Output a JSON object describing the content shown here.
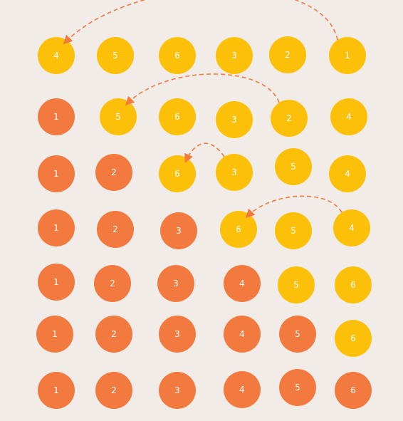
{
  "colors": {
    "background": "#f1ece8",
    "sorted": "#f27a3e",
    "unsorted": "#fdc009",
    "arrow": "#f27a3e",
    "label": "#ffffff"
  },
  "rows": [
    {
      "balls": [
        {
          "label": "4",
          "state": "unsorted"
        },
        {
          "label": "5",
          "state": "unsorted"
        },
        {
          "label": "6",
          "state": "unsorted"
        },
        {
          "label": "3",
          "state": "unsorted"
        },
        {
          "label": "2",
          "state": "unsorted"
        },
        {
          "label": "1",
          "state": "unsorted"
        }
      ],
      "arrow": {
        "from": 5,
        "to": 0
      }
    },
    {
      "balls": [
        {
          "label": "1",
          "state": "sorted"
        },
        {
          "label": "5",
          "state": "unsorted"
        },
        {
          "label": "6",
          "state": "unsorted"
        },
        {
          "label": "3",
          "state": "unsorted"
        },
        {
          "label": "2",
          "state": "unsorted"
        },
        {
          "label": "4",
          "state": "unsorted"
        }
      ],
      "arrow": {
        "from": 4,
        "to": 1
      }
    },
    {
      "balls": [
        {
          "label": "1",
          "state": "sorted"
        },
        {
          "label": "2",
          "state": "sorted"
        },
        {
          "label": "6",
          "state": "unsorted"
        },
        {
          "label": "3",
          "state": "unsorted"
        },
        {
          "label": "5",
          "state": "unsorted"
        },
        {
          "label": "4",
          "state": "unsorted"
        }
      ],
      "arrow": {
        "from": 3,
        "to": 2
      }
    },
    {
      "balls": [
        {
          "label": "1",
          "state": "sorted"
        },
        {
          "label": "2",
          "state": "sorted"
        },
        {
          "label": "3",
          "state": "sorted"
        },
        {
          "label": "6",
          "state": "unsorted"
        },
        {
          "label": "5",
          "state": "unsorted"
        },
        {
          "label": "4",
          "state": "unsorted"
        }
      ],
      "arrow": {
        "from": 5,
        "to": 3
      }
    },
    {
      "balls": [
        {
          "label": "1",
          "state": "sorted"
        },
        {
          "label": "2",
          "state": "sorted"
        },
        {
          "label": "3",
          "state": "sorted"
        },
        {
          "label": "4",
          "state": "sorted"
        },
        {
          "label": "5",
          "state": "unsorted"
        },
        {
          "label": "6",
          "state": "unsorted"
        }
      ]
    },
    {
      "balls": [
        {
          "label": "1",
          "state": "sorted"
        },
        {
          "label": "2",
          "state": "sorted"
        },
        {
          "label": "3",
          "state": "sorted"
        },
        {
          "label": "4",
          "state": "sorted"
        },
        {
          "label": "5",
          "state": "sorted"
        },
        {
          "label": "6",
          "state": "unsorted"
        }
      ]
    },
    {
      "balls": [
        {
          "label": "1",
          "state": "sorted"
        },
        {
          "label": "2",
          "state": "sorted"
        },
        {
          "label": "3",
          "state": "sorted"
        },
        {
          "label": "4",
          "state": "sorted"
        },
        {
          "label": "5",
          "state": "sorted"
        },
        {
          "label": "6",
          "state": "sorted"
        }
      ]
    }
  ]
}
